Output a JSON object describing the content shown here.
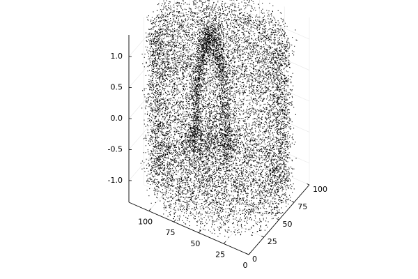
{
  "chart_data": {
    "type": "scatter3d",
    "title": "",
    "xlabel": "",
    "ylabel": "",
    "zlabel": "",
    "xlim": [
      0,
      120
    ],
    "ylim": [
      0,
      100
    ],
    "zlim": [
      -1.35,
      1.35
    ],
    "x_ticks": [
      "0",
      "25",
      "50",
      "75",
      "100"
    ],
    "y_ticks": [
      "0",
      "25",
      "50",
      "75",
      "100"
    ],
    "z_ticks": [
      "1.0",
      "0.5",
      "0.0",
      "-0.5",
      "-1.0"
    ],
    "x_tick_values": [
      0,
      25,
      50,
      75,
      100
    ],
    "y_tick_values": [
      0,
      25,
      50,
      75,
      100
    ],
    "z_tick_values": [
      1.0,
      0.5,
      0.0,
      -0.5,
      -1.0
    ],
    "grid": true,
    "legend": "none",
    "marker_color": "#000000",
    "series": [
      {
        "description": "3D scatter cloud of ~14000 points (approx. Stanford-bunny-like point cloud) within x 0–120, y 0–100, z -1.3–1.3",
        "n_points": 14000
      }
    ]
  }
}
